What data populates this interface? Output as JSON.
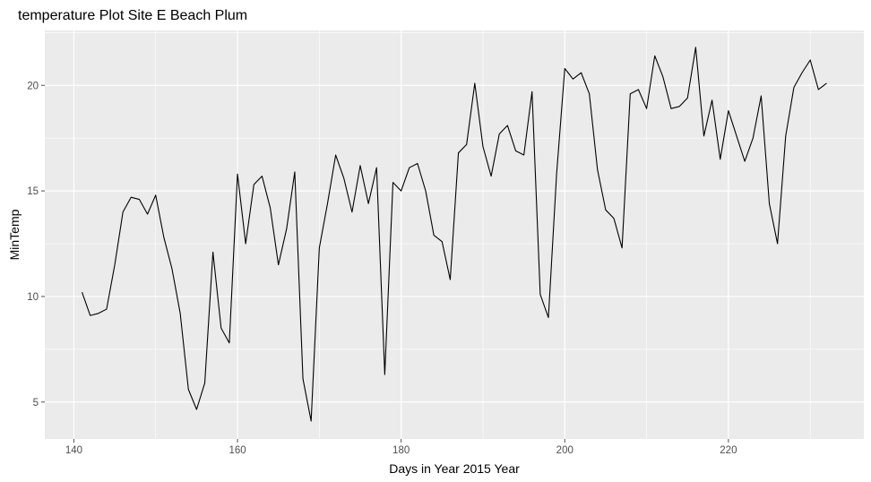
{
  "chart_data": {
    "type": "line",
    "title": "temperature Plot Site E Beach Plum",
    "xlabel": "Days in Year 2015 Year",
    "ylabel": "MinTemp",
    "xlim": [
      136.45,
      236.55
    ],
    "ylim": [
      3.25,
      22.6
    ],
    "x_ticks": [
      140,
      160,
      180,
      200,
      220
    ],
    "x_tick_labels": [
      "140",
      "160",
      "180",
      "200",
      "220"
    ],
    "y_ticks": [
      5,
      10,
      15,
      20
    ],
    "y_tick_labels": [
      "5",
      "10",
      "15",
      "20"
    ],
    "grid": true,
    "colors": {
      "panel": "#ebebeb",
      "grid": "#ffffff",
      "line": "#000000",
      "ticks": "#4d4d4d"
    },
    "series": [
      {
        "x": [
          141,
          142,
          143,
          144,
          145,
          146,
          147,
          148,
          149,
          150,
          151,
          152,
          153,
          154,
          155,
          156,
          157,
          158,
          159,
          160,
          161,
          162,
          163,
          164,
          165,
          166,
          167,
          168,
          169,
          170,
          171,
          172,
          173,
          174,
          175,
          176,
          177,
          178,
          179,
          180,
          181,
          182,
          183,
          184,
          185,
          186,
          187,
          188,
          189,
          190,
          191,
          192,
          193,
          194,
          195,
          196,
          197,
          198,
          199,
          200,
          201,
          202,
          203,
          204,
          205,
          206,
          207,
          208,
          209,
          210,
          211,
          212,
          213,
          214,
          215,
          216,
          217,
          218,
          219,
          220,
          221,
          222,
          223,
          224,
          225,
          226,
          227,
          228,
          229,
          230,
          231,
          232
        ],
        "values": [
          10.2,
          9.1,
          9.2,
          9.4,
          11.5,
          14.0,
          14.7,
          14.6,
          13.9,
          14.8,
          12.8,
          11.3,
          9.2,
          5.6,
          4.65,
          5.9,
          12.1,
          8.5,
          7.8,
          15.8,
          12.5,
          15.3,
          15.7,
          14.2,
          11.5,
          13.2,
          15.9,
          6.1,
          4.1,
          12.3,
          14.4,
          16.7,
          15.6,
          14.0,
          16.2,
          14.4,
          16.1,
          6.3,
          15.4,
          15.0,
          16.1,
          16.3,
          15.0,
          12.9,
          12.6,
          10.8,
          16.8,
          17.2,
          20.1,
          17.1,
          15.7,
          17.7,
          18.1,
          16.9,
          16.7,
          19.7,
          10.1,
          9.0,
          15.8,
          20.8,
          20.3,
          20.6,
          19.6,
          16.0,
          14.1,
          13.7,
          12.3,
          19.6,
          19.8,
          18.9,
          21.4,
          20.4,
          18.9,
          19.0,
          19.4,
          21.8,
          17.6,
          19.3,
          16.5,
          18.8,
          17.6,
          16.4,
          17.5,
          19.5,
          14.4,
          12.5,
          17.6,
          19.9,
          20.6,
          21.2,
          19.8,
          20.1
        ]
      }
    ]
  }
}
